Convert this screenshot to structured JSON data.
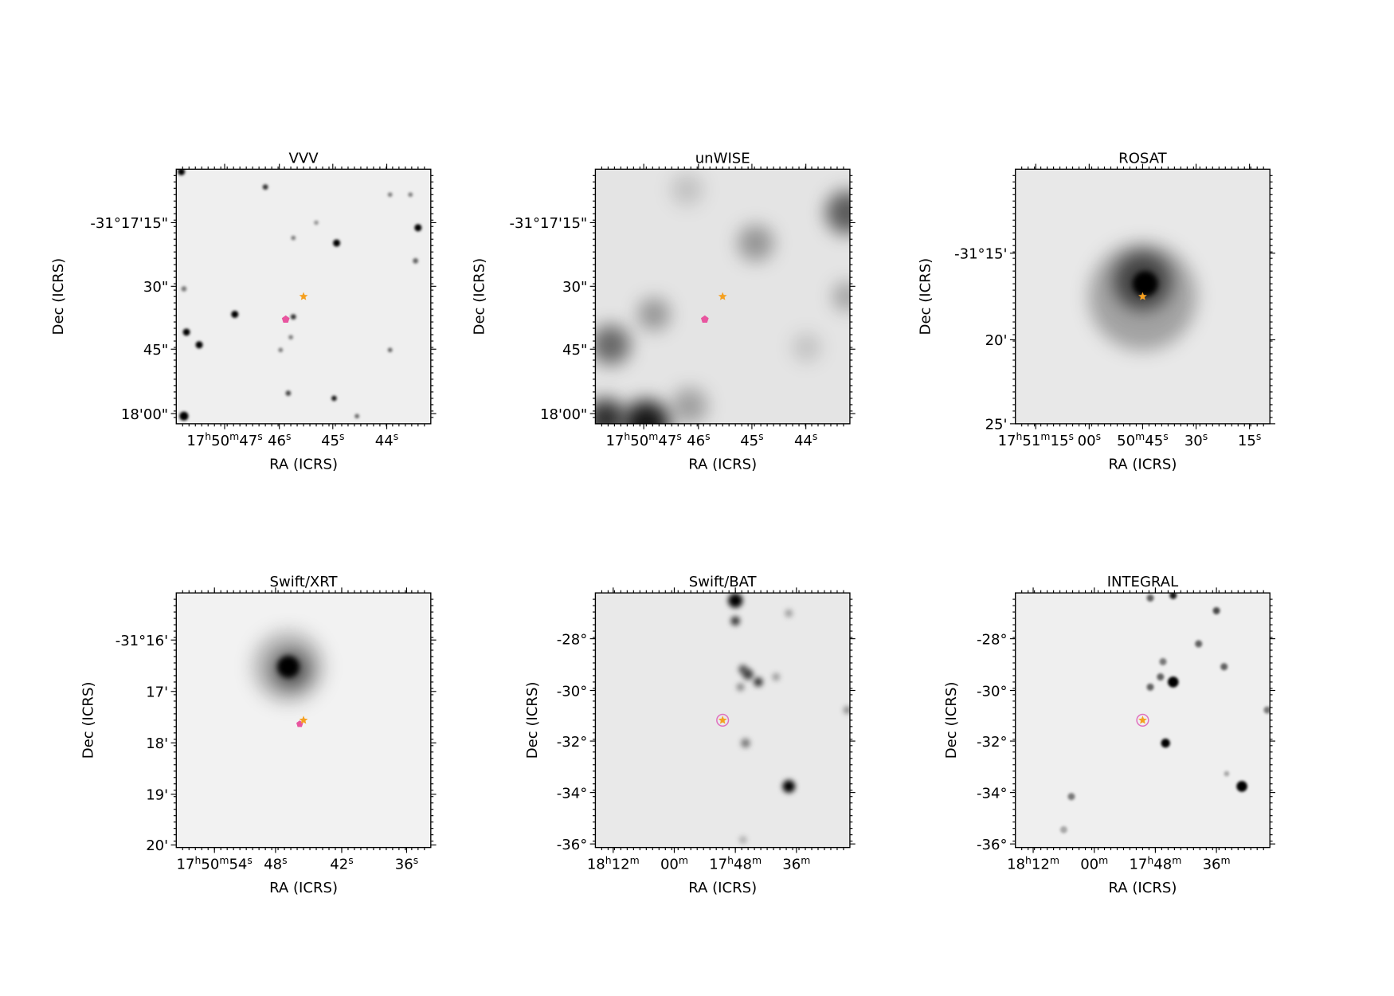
{
  "panels": [
    {
      "title": "VVV",
      "xlabel": "RA (ICRS)",
      "ylabel": "Dec (ICRS)",
      "xticks": [
        "17h50m47s",
        "46s",
        "45s",
        "44s"
      ],
      "yticks": [
        "-31°17'15\"",
        "30\"",
        "45\"",
        "18'00\""
      ]
    },
    {
      "title": "unWISE",
      "xlabel": "RA (ICRS)",
      "ylabel": "Dec (ICRS)",
      "xticks": [
        "17h50m47s",
        "46s",
        "45s",
        "44s"
      ],
      "yticks": [
        "-31°17'15\"",
        "30\"",
        "45\"",
        "18'00\""
      ]
    },
    {
      "title": "ROSAT",
      "xlabel": "RA (ICRS)",
      "ylabel": "Dec (ICRS)",
      "xticks": [
        "17h51m15s",
        "00s",
        "50m45s",
        "30s",
        "15s"
      ],
      "yticks": [
        "-31°15'",
        "20'",
        "25'"
      ]
    },
    {
      "title": "Swift/XRT",
      "xlabel": "RA (ICRS)",
      "ylabel": "Dec (ICRS)",
      "xticks": [
        "17h50m54s",
        "48s",
        "42s",
        "36s"
      ],
      "yticks": [
        "-31°16'",
        "17'",
        "18'",
        "19'",
        "20'"
      ]
    },
    {
      "title": "Swift/BAT",
      "xlabel": "RA (ICRS)",
      "ylabel": "Dec (ICRS)",
      "xticks": [
        "18h12m",
        "00m",
        "17h48m",
        "36m"
      ],
      "yticks": [
        "-28°",
        "-30°",
        "-32°",
        "-34°",
        "-36°"
      ]
    },
    {
      "title": "INTEGRAL",
      "xlabel": "RA (ICRS)",
      "ylabel": "Dec (ICRS)",
      "xticks": [
        "18h12m",
        "00m",
        "17h48m",
        "36m"
      ],
      "yticks": [
        "-28°",
        "-30°",
        "-32°",
        "-34°",
        "-36°"
      ]
    }
  ]
}
